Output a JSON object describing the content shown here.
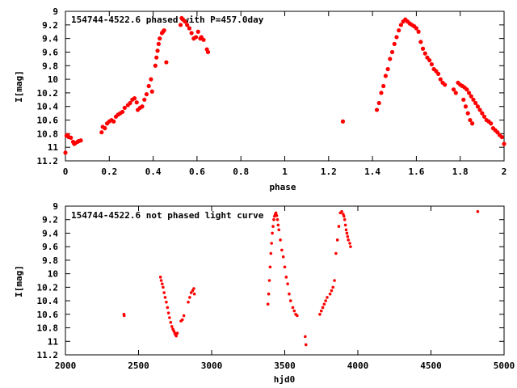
{
  "chart_data": [
    {
      "type": "scatter",
      "title": "154744-4522.6 phased with P=457.0day",
      "xlabel": "phase",
      "ylabel": "I[mag]",
      "xlim": [
        0,
        2
      ],
      "ylim": [
        9,
        11.2
      ],
      "y_inverted": true,
      "grid": false,
      "marker_color": "#ff0000",
      "xticks": [
        "0",
        "0.2",
        "0.4",
        "0.6",
        "0.8",
        "1",
        "1.2",
        "1.4",
        "1.6",
        "1.8",
        "2"
      ],
      "xtick_values": [
        0,
        0.2,
        0.4,
        0.6,
        0.8,
        1,
        1.2,
        1.4,
        1.6,
        1.8,
        2
      ],
      "yticks": [
        "9",
        "9.2",
        "9.4",
        "9.6",
        "9.8",
        "10",
        "10.2",
        "10.4",
        "10.6",
        "10.8",
        "11",
        "11.2"
      ],
      "ytick_values": [
        9,
        9.2,
        9.4,
        9.6,
        9.8,
        10,
        10.2,
        10.4,
        10.6,
        10.8,
        11,
        11.2
      ],
      "series": [
        {
          "x": [
            0.0,
            0.005,
            0.01,
            0.015,
            0.025,
            0.035,
            0.04,
            0.045,
            0.055,
            0.06,
            0.07,
            0.165,
            0.17,
            0.18,
            0.19,
            0.2,
            0.21,
            0.22,
            0.23,
            0.24,
            0.25,
            0.26,
            0.27,
            0.285,
            0.295,
            0.305,
            0.315,
            0.325,
            0.33,
            0.34,
            0.35,
            0.36,
            0.37,
            0.38,
            0.39,
            0.395,
            0.41,
            0.415,
            0.42,
            0.425,
            0.43,
            0.44,
            0.445,
            0.45,
            0.46,
            0.525,
            0.53,
            0.535,
            0.545,
            0.555,
            0.565,
            0.575,
            0.585,
            0.595,
            0.605,
            0.615,
            0.62,
            0.63,
            0.645,
            0.65,
            1.265,
            1.42,
            1.43,
            1.44,
            1.45,
            1.46,
            1.47,
            1.48,
            1.49,
            1.5,
            1.51,
            1.52,
            1.53,
            1.54,
            1.55,
            1.56,
            1.57,
            1.58,
            1.59,
            1.6,
            1.61,
            1.62,
            1.63,
            1.64,
            1.65,
            1.66,
            1.67,
            1.68,
            1.69,
            1.7,
            1.71,
            1.72,
            1.73,
            1.77,
            1.78,
            1.79,
            1.8,
            1.81,
            1.82,
            1.83,
            1.84,
            1.85,
            1.86,
            1.87,
            1.88,
            1.89,
            1.9,
            1.91,
            1.92,
            1.93,
            1.94,
            1.95,
            1.96,
            1.97,
            1.98,
            1.99,
            2.0,
            1.815,
            1.825,
            1.835,
            1.845,
            1.855
          ],
          "y": [
            11.08,
            10.83,
            10.82,
            10.85,
            10.86,
            10.92,
            10.95,
            10.94,
            10.92,
            10.91,
            10.9,
            10.78,
            10.7,
            10.72,
            10.65,
            10.62,
            10.6,
            10.62,
            10.55,
            10.52,
            10.5,
            10.48,
            10.42,
            10.38,
            10.35,
            10.3,
            10.28,
            10.34,
            10.45,
            10.42,
            10.4,
            10.3,
            10.22,
            10.1,
            10.0,
            10.18,
            9.8,
            9.68,
            9.58,
            9.48,
            9.4,
            9.32,
            9.3,
            9.28,
            9.75,
            9.2,
            9.1,
            9.12,
            9.15,
            9.2,
            9.25,
            9.32,
            9.4,
            9.38,
            9.3,
            9.4,
            9.38,
            9.42,
            9.56,
            9.6,
            10.62,
            10.45,
            10.35,
            10.2,
            10.1,
            9.95,
            9.85,
            9.7,
            9.6,
            9.48,
            9.38,
            9.28,
            9.2,
            9.15,
            9.12,
            9.15,
            9.18,
            9.2,
            9.22,
            9.25,
            9.3,
            9.45,
            9.55,
            9.62,
            9.68,
            9.72,
            9.78,
            9.85,
            9.88,
            9.92,
            10.0,
            10.05,
            10.08,
            10.15,
            10.2,
            10.05,
            10.08,
            10.1,
            10.12,
            10.15,
            10.2,
            10.25,
            10.3,
            10.35,
            10.4,
            10.45,
            10.5,
            10.55,
            10.6,
            10.62,
            10.65,
            10.72,
            10.75,
            10.78,
            10.82,
            10.85,
            10.95,
            10.3,
            10.4,
            10.5,
            10.6,
            10.65
          ]
        }
      ]
    },
    {
      "type": "scatter",
      "title": "154744-4522.6 not phased light curve",
      "xlabel": "hjd0",
      "ylabel": "I[mag]",
      "xlim": [
        2000,
        5000
      ],
      "ylim": [
        9,
        11.2
      ],
      "y_inverted": true,
      "grid": false,
      "marker_color": "#ff0000",
      "xticks": [
        "2000",
        "2500",
        "3000",
        "3500",
        "4000",
        "4500",
        "5000"
      ],
      "xtick_values": [
        2000,
        2500,
        3000,
        3500,
        4000,
        4500,
        5000
      ],
      "yticks": [
        "9",
        "9.2",
        "9.4",
        "9.6",
        "9.8",
        "10",
        "10.2",
        "10.4",
        "10.6",
        "10.8",
        "11",
        "11.2"
      ],
      "ytick_values": [
        9,
        9.2,
        9.4,
        9.6,
        9.8,
        10,
        10.2,
        10.4,
        10.6,
        10.8,
        11,
        11.2
      ],
      "series": [
        {
          "x": [
            2400,
            2402,
            2650,
            2655,
            2662,
            2668,
            2675,
            2682,
            2690,
            2698,
            2705,
            2712,
            2720,
            2728,
            2735,
            2742,
            2748,
            2752,
            2758,
            2765,
            2790,
            2800,
            2810,
            2840,
            2850,
            2860,
            2870,
            2878,
            2882,
            3385,
            3390,
            3395,
            3400,
            3405,
            3410,
            3415,
            3420,
            3425,
            3430,
            3435,
            3440,
            3445,
            3450,
            3455,
            3460,
            3470,
            3480,
            3490,
            3500,
            3510,
            3520,
            3530,
            3540,
            3555,
            3565,
            3575,
            3585,
            3640,
            3645,
            3740,
            3750,
            3760,
            3770,
            3780,
            3790,
            3810,
            3820,
            3830,
            3840,
            3850,
            3860,
            3870,
            3880,
            3890,
            3900,
            3905,
            3910,
            3915,
            3920,
            3925,
            3930,
            3935,
            3945,
            3950,
            4820
          ],
          "y": [
            10.6,
            10.62,
            10.05,
            10.1,
            10.15,
            10.2,
            10.28,
            10.35,
            10.42,
            10.5,
            10.58,
            10.65,
            10.72,
            10.78,
            10.82,
            10.85,
            10.88,
            10.9,
            10.92,
            10.88,
            10.7,
            10.68,
            10.62,
            10.42,
            10.35,
            10.28,
            10.25,
            10.22,
            10.3,
            10.45,
            10.3,
            10.1,
            9.9,
            9.7,
            9.55,
            9.4,
            9.3,
            9.2,
            9.15,
            9.12,
            9.1,
            9.14,
            9.2,
            9.28,
            9.35,
            9.5,
            9.65,
            9.75,
            9.9,
            10.05,
            10.15,
            10.3,
            10.4,
            10.5,
            10.55,
            10.6,
            10.62,
            10.93,
            11.05,
            10.6,
            10.55,
            10.5,
            10.45,
            10.4,
            10.35,
            10.3,
            10.25,
            10.2,
            10.1,
            9.7,
            9.5,
            9.3,
            9.1,
            9.08,
            9.12,
            9.15,
            9.2,
            9.28,
            9.35,
            9.4,
            9.45,
            9.5,
            9.55,
            9.6,
            9.08
          ]
        }
      ]
    }
  ]
}
